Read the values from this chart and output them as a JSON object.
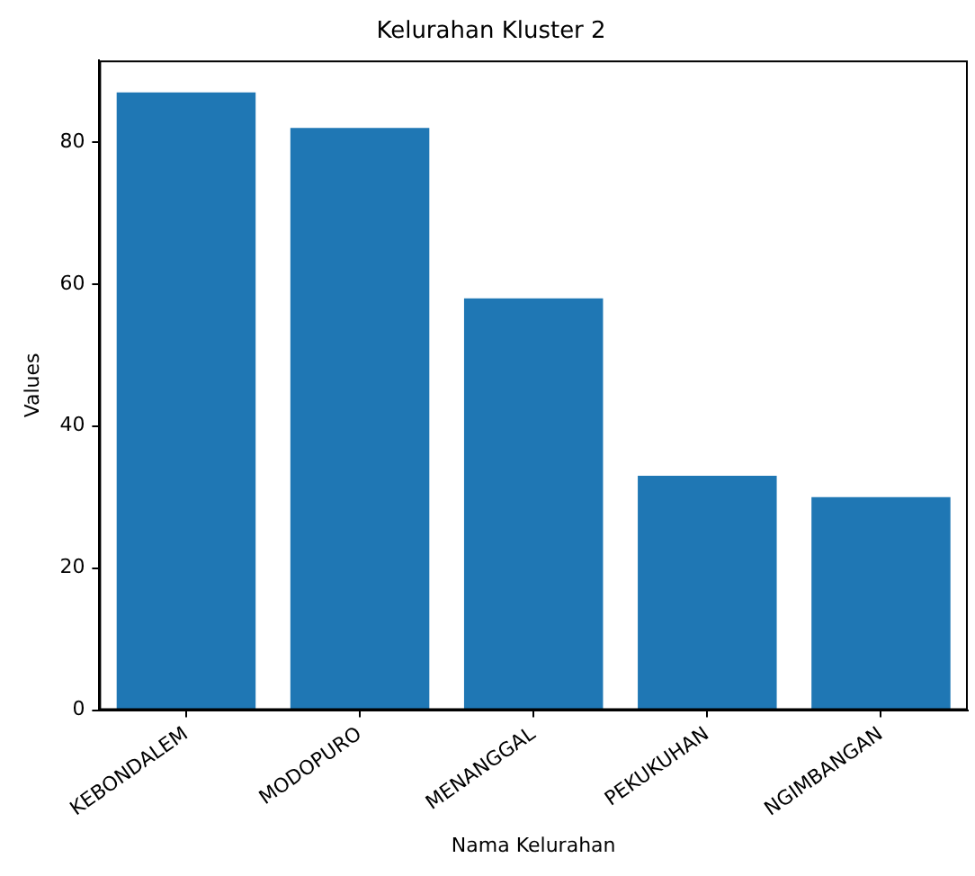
{
  "chart_data": {
    "type": "bar",
    "title": "Kelurahan Kluster 2",
    "xlabel": "Nama Kelurahan",
    "ylabel": "Values",
    "categories": [
      "KEBONDALEM",
      "MODOPURO",
      "MENANGGAL",
      "PEKUKUHAN",
      "NGIMBANGAN"
    ],
    "values": [
      87,
      82,
      58,
      33,
      30
    ],
    "color": "#1f77b4",
    "ylim": [
      0,
      91.5
    ],
    "yticks": [
      0,
      20,
      40,
      60,
      80
    ],
    "grid": false,
    "legend": false
  }
}
